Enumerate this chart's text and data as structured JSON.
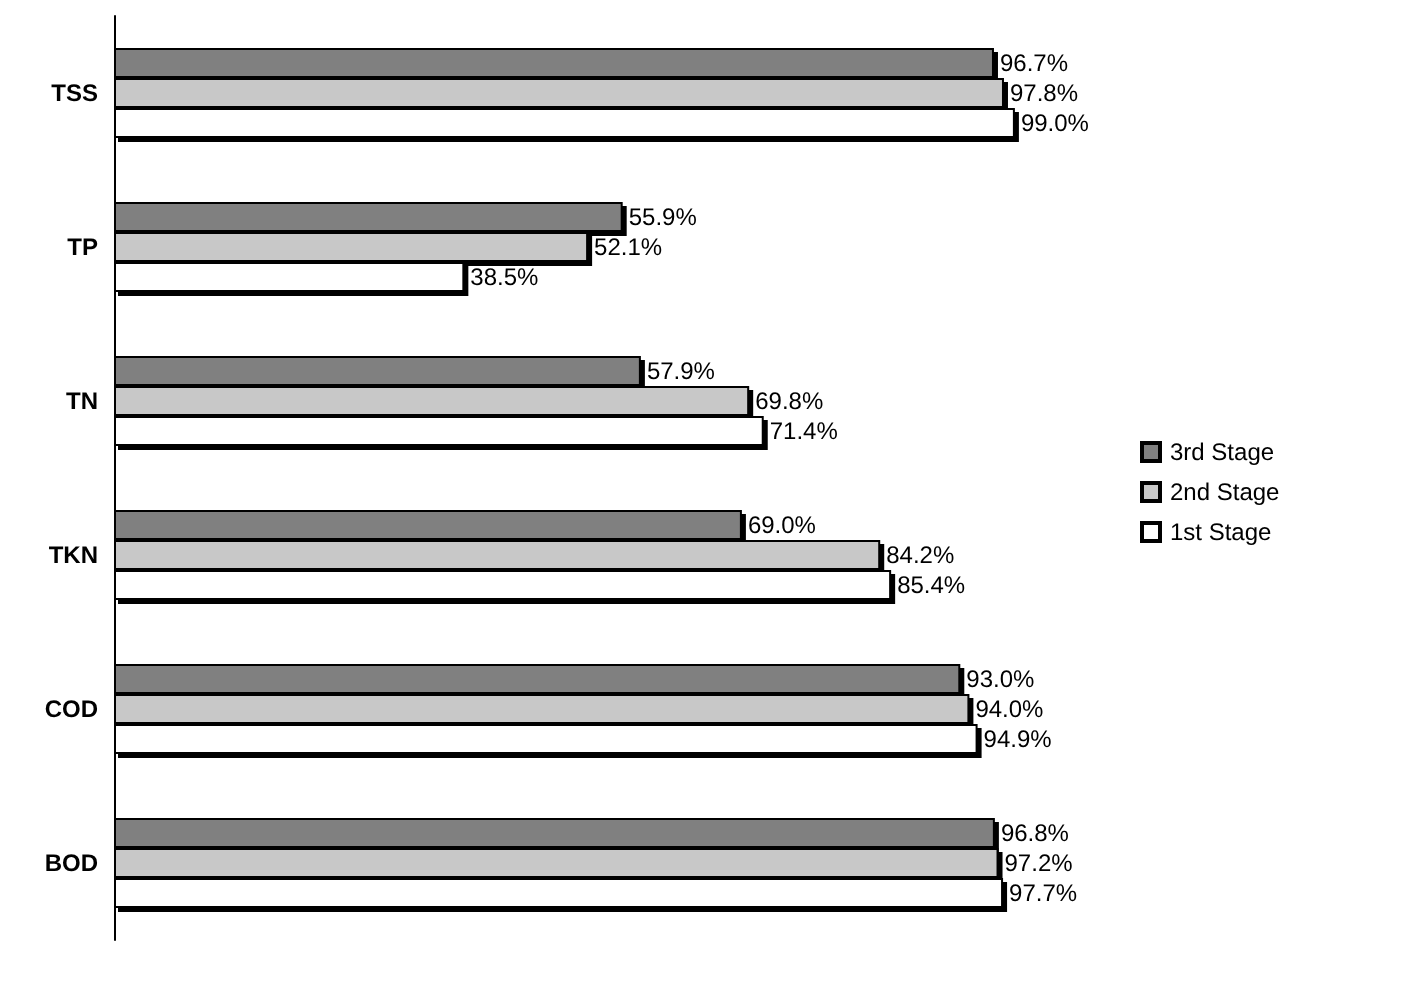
{
  "chart_data": {
    "type": "bar",
    "orientation": "horizontal",
    "categories": [
      "TSS",
      "TP",
      "TN",
      "TKN",
      "COD",
      "BOD"
    ],
    "series": [
      {
        "name": "3rd Stage",
        "color": "#808080",
        "values": [
          96.7,
          55.9,
          57.9,
          69.0,
          93.0,
          96.8
        ],
        "value_labels": [
          "96.7%",
          "55.9%",
          "57.9%",
          "69.0%",
          "93.0%",
          "96.8%"
        ]
      },
      {
        "name": "2nd Stage",
        "color": "#c8c8c8",
        "values": [
          97.8,
          52.1,
          69.8,
          84.2,
          94.0,
          97.2
        ],
        "value_labels": [
          "97.8%",
          "52.1%",
          "69.8%",
          "84.2%",
          "94.0%",
          "97.2%"
        ]
      },
      {
        "name": "1st Stage",
        "color": "#ffffff",
        "values": [
          99.0,
          38.5,
          71.4,
          85.4,
          94.9,
          97.7
        ],
        "value_labels": [
          "99.0%",
          "38.5%",
          "71.4%",
          "85.4%",
          "94.9%",
          "97.7%"
        ]
      }
    ],
    "tick_labels": "y",
    "grid": false,
    "legend": "right"
  }
}
